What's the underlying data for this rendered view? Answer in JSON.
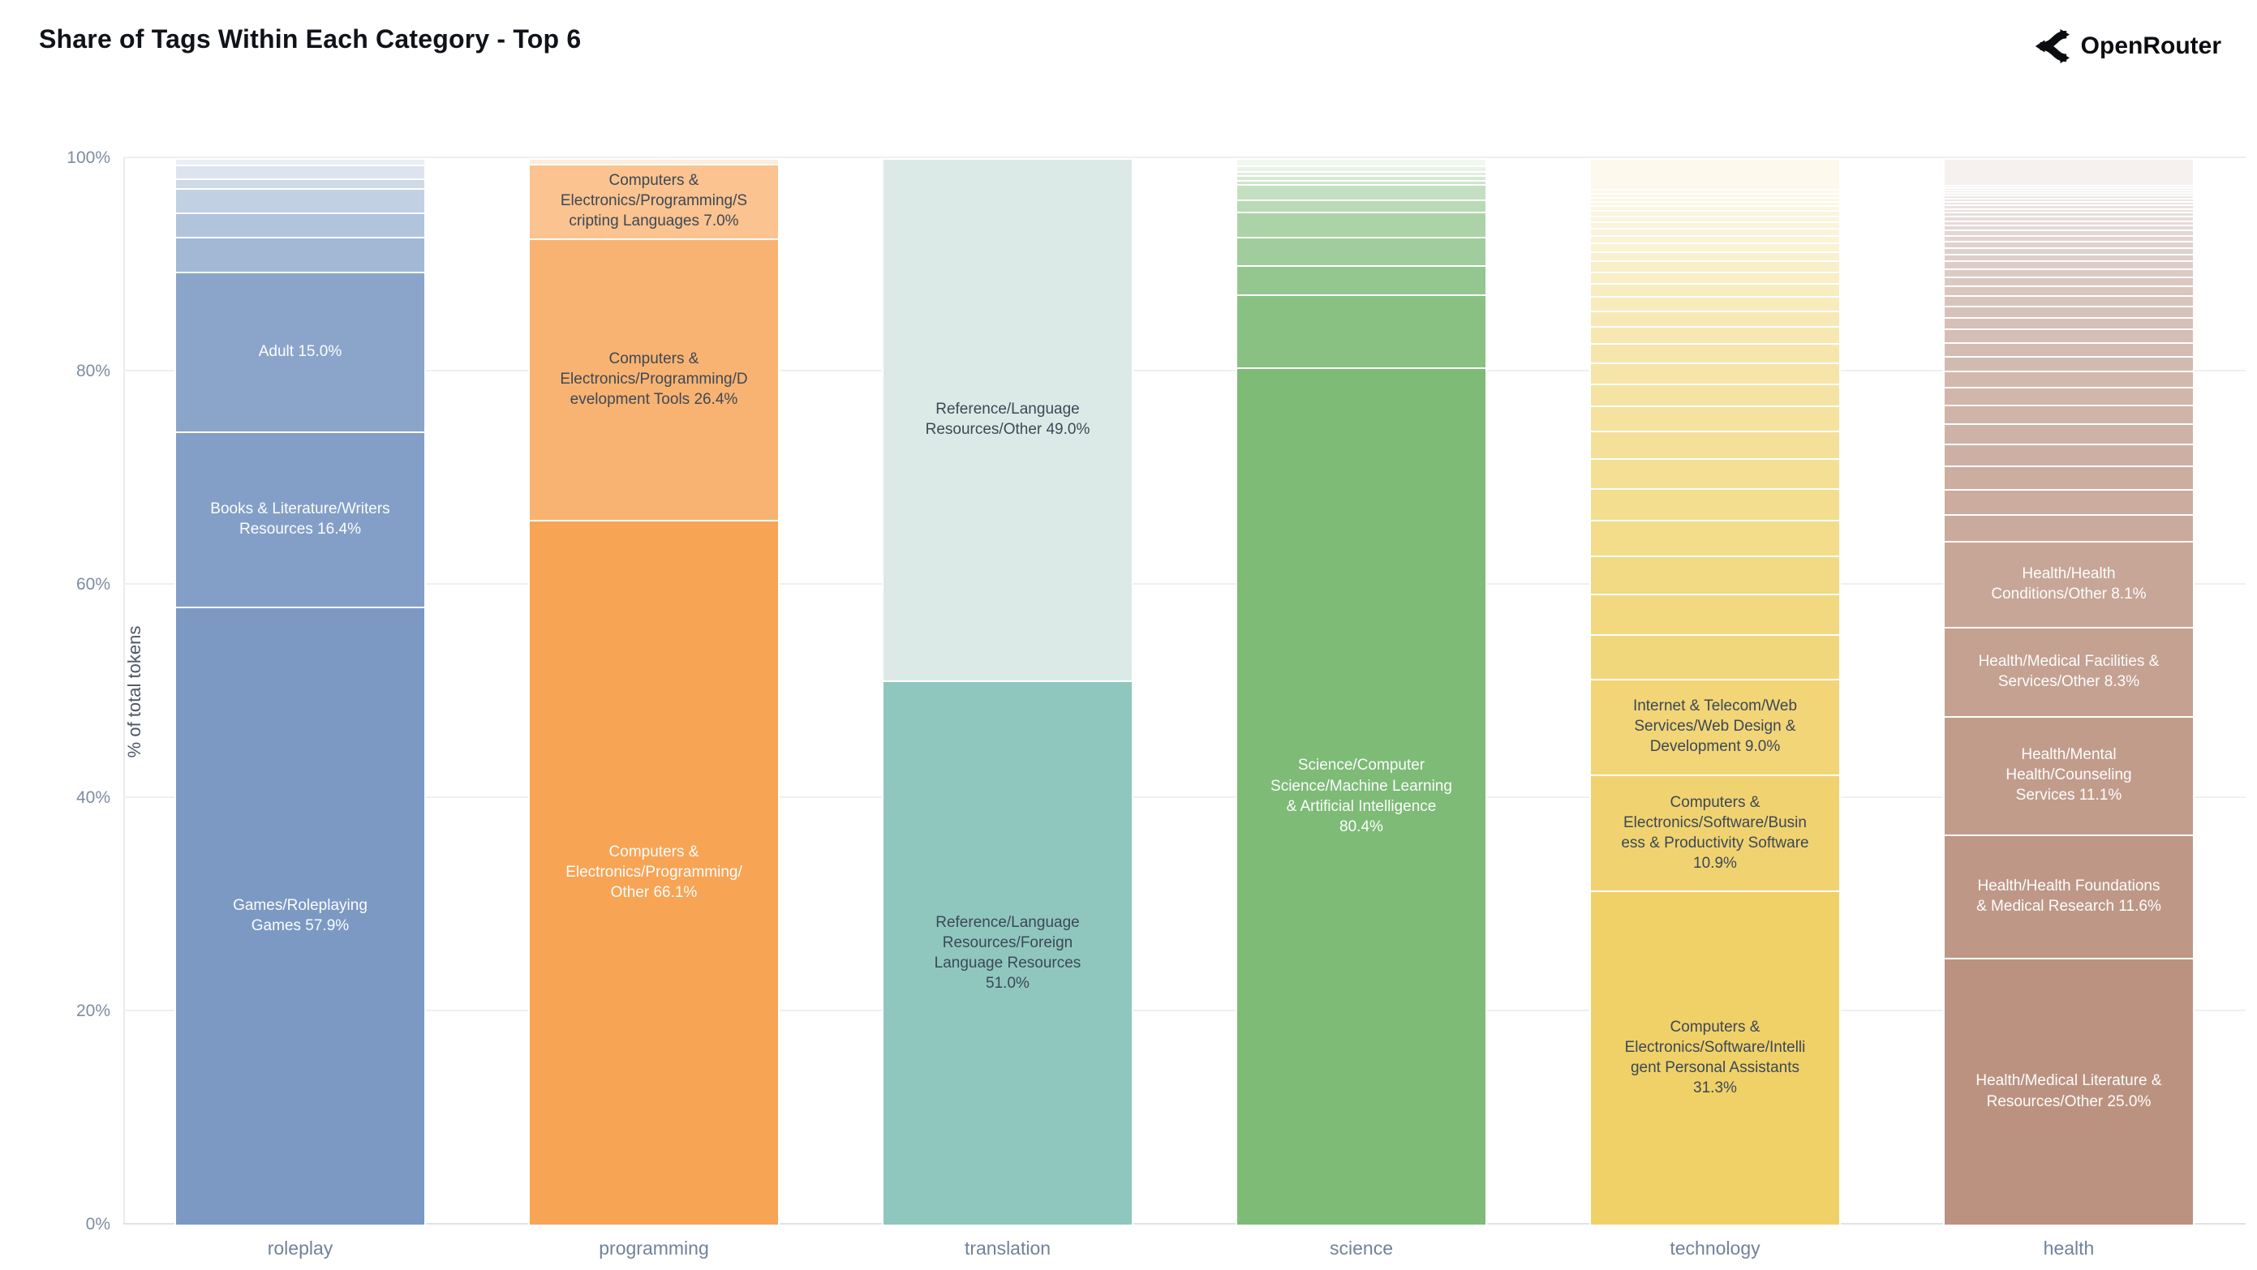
{
  "title": "Share of Tags Within Each Category - Top 6",
  "brand": {
    "name": "OpenRouter",
    "icon": "openrouter-route-icon",
    "color": "#0b0d10"
  },
  "y_axis": {
    "label": "% of total tokens",
    "ticks": [
      {
        "label": "0%",
        "value": 0
      },
      {
        "label": "20%",
        "value": 20
      },
      {
        "label": "40%",
        "value": 40
      },
      {
        "label": "60%",
        "value": 60
      },
      {
        "label": "80%",
        "value": 80
      },
      {
        "label": "100%",
        "value": 100
      }
    ]
  },
  "x_axis": {
    "labels": [
      "roleplay",
      "programming",
      "translation",
      "science",
      "technology",
      "health"
    ]
  },
  "chart_data": {
    "type": "bar",
    "stacked": true,
    "orientation": "vertical",
    "title": "Share of Tags Within Each Category - Top 6",
    "xlabel": "",
    "ylabel": "% of total tokens",
    "ylim": [
      0,
      100
    ],
    "grid": true,
    "legend": false,
    "value_unit": "% of total tokens, segments listed bottom to top",
    "categories": [
      "roleplay",
      "programming",
      "translation",
      "science",
      "technology",
      "health"
    ],
    "bars": [
      {
        "category": "roleplay",
        "base_color": "#7B99C3",
        "segments": [
          {
            "tag": "Games/Roleplaying Games",
            "value": 57.9,
            "color": "#7B99C3",
            "text_color": "#FCFDFE"
          },
          {
            "tag": "Books & Literature/Writers Resources",
            "value": 16.4,
            "color": "#839FC7",
            "text_color": "#FCFDFE"
          },
          {
            "tag": "Adult",
            "value": 15.0,
            "color": "#8BA5CA",
            "text_color": "#FCFDFE"
          },
          {
            "value": 3.2,
            "color": "#A3B8D5"
          },
          {
            "value": 2.3,
            "color": "#B2C4DC"
          },
          {
            "value": 2.3,
            "color": "#C2D0E3"
          },
          {
            "value": 0.9,
            "color": "#CFDAE9"
          },
          {
            "value": 1.3,
            "color": "#DDE4EF"
          },
          {
            "value": 0.6,
            "color": "#EAEFF5"
          }
        ]
      },
      {
        "category": "programming",
        "base_color": "#F7A455",
        "segments": [
          {
            "tag": "Computers & Electronics/Programming/Other",
            "value": 66.1,
            "color": "#F7A455",
            "text_color": "#FCFDFE"
          },
          {
            "tag": "Computers & Electronics/Programming/Development Tools",
            "value": 26.4,
            "color": "#F8B372",
            "text_color": "#3D4856"
          },
          {
            "tag": "Computers & Electronics/Programming/Scripting Languages",
            "value": 7.0,
            "color": "#FAC38F",
            "text_color": "#3D4856"
          },
          {
            "value": 0.5,
            "color": "#FDEDDD"
          }
        ]
      },
      {
        "category": "translation",
        "base_color": "#8FC7BF",
        "segments": [
          {
            "tag": "Reference/Language Resources/Foreign Language Resources",
            "value": 51.0,
            "color": "#8FC7BF",
            "text_color": "#3D4856"
          },
          {
            "tag": "Reference/Language Resources/Other",
            "value": 49.0,
            "color": "#DCEAE7",
            "text_color": "#3D4856"
          }
        ]
      },
      {
        "category": "science",
        "base_color": "#7DBB76",
        "segments": [
          {
            "tag": "Science/Computer Science/Machine Learning & Artificial Intelligence",
            "value": 80.4,
            "color": "#7DBB76",
            "text_color": "#FCFDFE"
          },
          {
            "value": 6.9,
            "color": "#89C182"
          },
          {
            "value": 2.7,
            "color": "#94C78F"
          },
          {
            "value": 2.7,
            "color": "#A0CD9B"
          },
          {
            "value": 2.3,
            "color": "#ACD3A7"
          },
          {
            "value": 1.2,
            "color": "#B8DAB4"
          },
          {
            "value": 1.4,
            "color": "#C3E0C0"
          },
          {
            "value": 0.4,
            "color": "#CCE5CA"
          },
          {
            "value": 0.45,
            "color": "#D5E9D3"
          },
          {
            "value": 0.4,
            "color": "#DFEEDD"
          },
          {
            "value": 0.5,
            "color": "#E8F3E6"
          },
          {
            "value": 0.7,
            "color": "#F1F8F0"
          }
        ]
      },
      {
        "category": "technology",
        "base_color": "#EFD168",
        "segments": [
          {
            "tag": "Computers & Electronics/Software/Intelligent Personal Assistants",
            "value": 31.3,
            "color": "#EFD168",
            "text_color": "#3D4856"
          },
          {
            "tag": "Computers & Electronics/Software/Business & Productivity Software",
            "value": 10.9,
            "color": "#F0D370",
            "text_color": "#3D4856"
          },
          {
            "tag": "Internet & Telecom/Web Services/Web Design & Development",
            "value": 9.0,
            "color": "#F1D577",
            "text_color": "#3D4856"
          },
          {
            "value": 4.13,
            "color": "#F1D77B"
          },
          {
            "value": 3.85,
            "color": "#F2D980"
          },
          {
            "value": 3.57,
            "color": "#F2DA85"
          },
          {
            "value": 3.3,
            "color": "#F3DC8A"
          },
          {
            "value": 3.02,
            "color": "#F3DD8F"
          },
          {
            "value": 2.79,
            "color": "#F4DF94"
          },
          {
            "value": 2.57,
            "color": "#F4E099"
          },
          {
            "value": 2.35,
            "color": "#F5E29E"
          },
          {
            "value": 2.12,
            "color": "#F5E3A3"
          },
          {
            "value": 1.95,
            "color": "#F6E5A8"
          },
          {
            "value": 1.79,
            "color": "#F6E6AD"
          },
          {
            "value": 1.62,
            "color": "#F7E8B2"
          },
          {
            "value": 1.45,
            "color": "#F7E9B7"
          },
          {
            "value": 1.34,
            "color": "#F8EBBC"
          },
          {
            "value": 1.23,
            "color": "#F8ECC1"
          },
          {
            "value": 1.12,
            "color": "#F9EEC6"
          },
          {
            "value": 1.0,
            "color": "#F9EFCB"
          },
          {
            "value": 0.89,
            "color": "#F9F0D0"
          },
          {
            "value": 0.78,
            "color": "#FAF2D3"
          },
          {
            "value": 0.73,
            "color": "#FAF3D6"
          },
          {
            "value": 0.67,
            "color": "#FAF3D9"
          },
          {
            "value": 0.61,
            "color": "#FBF4DB"
          },
          {
            "value": 0.56,
            "color": "#FBF5DD"
          },
          {
            "value": 0.5,
            "color": "#FBF5DF"
          },
          {
            "value": 0.45,
            "color": "#FCF6E1"
          },
          {
            "value": 0.42,
            "color": "#FCF7E3"
          },
          {
            "value": 0.39,
            "color": "#FCF7E5"
          },
          {
            "value": 0.36,
            "color": "#FCF8E7"
          },
          {
            "value": 0.34,
            "color": "#FDF8E9"
          },
          {
            "value": 2.9,
            "color": "#FDF9EC"
          }
        ]
      },
      {
        "category": "health",
        "base_color": "#BB9280",
        "segments": [
          {
            "tag": "Health/Medical Literature & Resources/Other",
            "value": 25.0,
            "color": "#BB9280",
            "text_color": "#FCFDFE"
          },
          {
            "tag": "Health/Health Foundations & Medical Research",
            "value": 11.6,
            "color": "#BE9786",
            "text_color": "#FCFDFE"
          },
          {
            "tag": "Health/Mental Health/Counseling Services",
            "value": 11.1,
            "color": "#C19C8B",
            "text_color": "#FCFDFE"
          },
          {
            "tag": "Health/Medical Facilities & Services/Other",
            "value": 8.3,
            "color": "#C4A191",
            "text_color": "#FCFDFE"
          },
          {
            "tag": "Health/Health Conditions/Other",
            "value": 8.1,
            "color": "#C7A697",
            "text_color": "#FCFDFE"
          },
          {
            "value": 2.5,
            "color": "#CAAA9C"
          },
          {
            "value": 2.35,
            "color": "#CBAC9E"
          },
          {
            "value": 2.2,
            "color": "#CCAEA1"
          },
          {
            "value": 2.05,
            "color": "#CDB0A3"
          },
          {
            "value": 1.9,
            "color": "#CEB2A6"
          },
          {
            "value": 1.77,
            "color": "#CFB4A8"
          },
          {
            "value": 1.64,
            "color": "#D0B6AB"
          },
          {
            "value": 1.52,
            "color": "#D2B8AD"
          },
          {
            "value": 1.41,
            "color": "#D3BAB0"
          },
          {
            "value": 1.31,
            "color": "#D4BCB2"
          },
          {
            "value": 1.22,
            "color": "#D5BEB5"
          },
          {
            "value": 1.13,
            "color": "#D6C0B7"
          },
          {
            "value": 1.05,
            "color": "#D7C2BA"
          },
          {
            "value": 0.97,
            "color": "#D9C4BC"
          },
          {
            "value": 0.9,
            "color": "#DAC6BF"
          },
          {
            "value": 0.84,
            "color": "#DBC8C1"
          },
          {
            "value": 0.78,
            "color": "#DCCAC4"
          },
          {
            "value": 0.72,
            "color": "#DDCCC6"
          },
          {
            "value": 0.67,
            "color": "#DECEC9"
          },
          {
            "value": 0.62,
            "color": "#E0D0CB"
          },
          {
            "value": 0.58,
            "color": "#E1D2CE"
          },
          {
            "value": 0.54,
            "color": "#E2D4D0"
          },
          {
            "value": 0.5,
            "color": "#E3D6D3"
          },
          {
            "value": 0.46,
            "color": "#E4D8D5"
          },
          {
            "value": 0.43,
            "color": "#E6DAD8"
          },
          {
            "value": 0.4,
            "color": "#E7DCDA"
          },
          {
            "value": 0.38,
            "color": "#E8DEDD"
          },
          {
            "value": 0.36,
            "color": "#E9E0DF"
          },
          {
            "value": 0.34,
            "color": "#EAE2E1"
          },
          {
            "value": 0.32,
            "color": "#ECE4E3"
          },
          {
            "value": 0.3,
            "color": "#EDE6E5"
          },
          {
            "value": 0.28,
            "color": "#EEE8E7"
          },
          {
            "value": 0.26,
            "color": "#EFEAE9"
          },
          {
            "value": 0.24,
            "color": "#F0ECEB"
          },
          {
            "value": 0.22,
            "color": "#F2EEED"
          },
          {
            "value": 0.2,
            "color": "#F3F0EF"
          },
          {
            "value": 2.5,
            "color": "#F6F1EE"
          }
        ]
      }
    ]
  }
}
